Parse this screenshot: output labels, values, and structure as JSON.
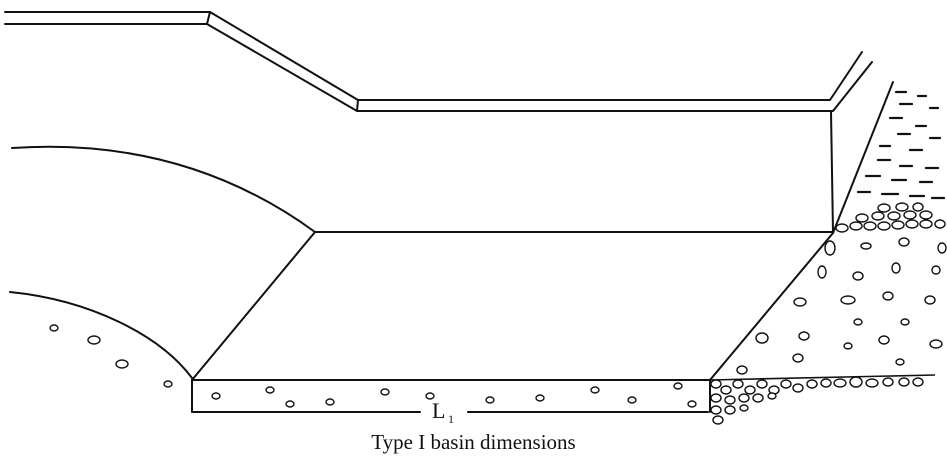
{
  "diagram": {
    "length_label": "L",
    "length_subscript": "1",
    "caption": "Type I basin dimensions"
  }
}
